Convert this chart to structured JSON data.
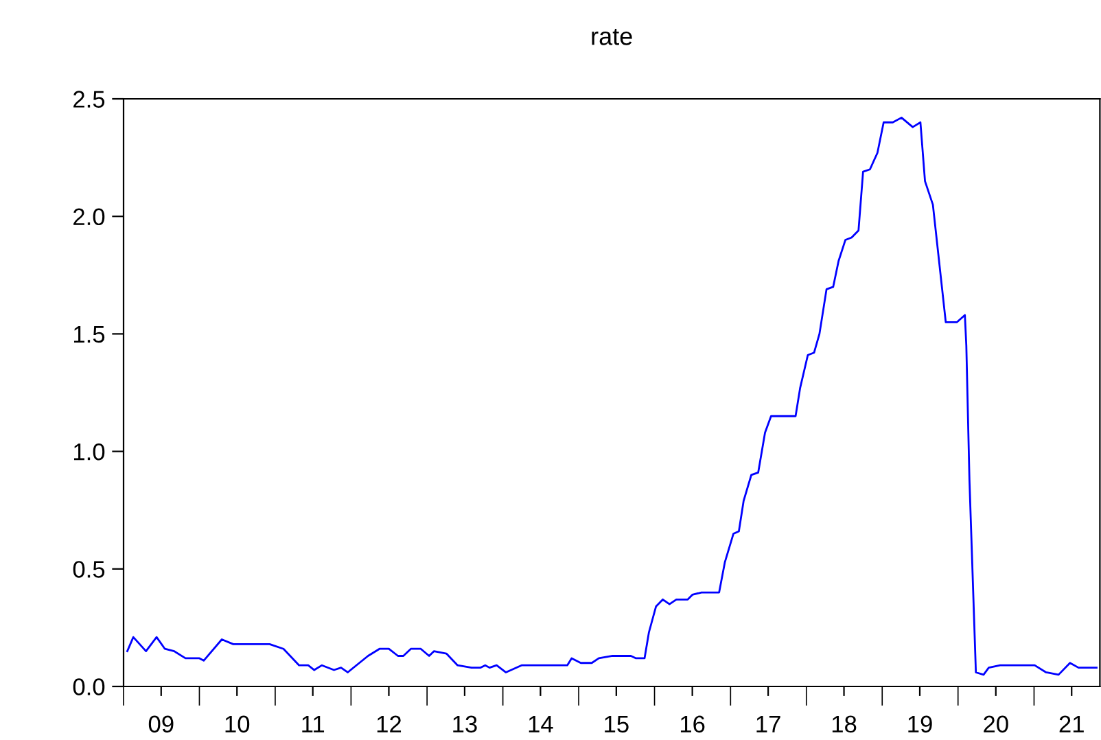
{
  "chart_data": {
    "type": "line",
    "title": "rate",
    "x": [
      "2009-01-19",
      "2009-02-17",
      "2009-04-19",
      "2009-06-09",
      "2009-07-19",
      "2009-09-02",
      "2009-10-26",
      "2010-01-01",
      "2010-01-22",
      "2010-04-19",
      "2010-06-13",
      "2010-07-26",
      "2010-12-05",
      "2011-02-10",
      "2011-04-26",
      "2011-06-09",
      "2011-07-08",
      "2011-08-14",
      "2011-10-11",
      "2011-11-14",
      "2011-12-16",
      "2012-03-23",
      "2012-05-17",
      "2012-07-01",
      "2012-08-14",
      "2012-09-09",
      "2012-10-15",
      "2012-12-02",
      "2013-01-11",
      "2013-02-03",
      "2013-04-04",
      "2013-05-28",
      "2013-08-03",
      "2013-09-16",
      "2013-10-08",
      "2013-10-29",
      "2013-12-02",
      "2014-01-15",
      "2014-04-01",
      "2014-05-25",
      "2014-06-27",
      "2014-11-07",
      "2014-11-28",
      "2015-01-11",
      "2015-03-05",
      "2015-04-08",
      "2015-06-13",
      "2015-09-09",
      "2015-10-04",
      "2015-11-14",
      "2015-12-05",
      "2016-01-08",
      "2016-02-10",
      "2016-03-13",
      "2016-04-15",
      "2016-06-09",
      "2016-07-01",
      "2016-08-14",
      "2016-11-07",
      "2016-12-05",
      "2017-01-15",
      "2017-02-10",
      "2017-03-05",
      "2017-04-11",
      "2017-05-14",
      "2017-06-16",
      "2017-07-15",
      "2017-11-10",
      "2017-12-02",
      "2018-01-08",
      "2018-02-07",
      "2018-03-05",
      "2018-04-08",
      "2018-05-10",
      "2018-06-05",
      "2018-07-08",
      "2018-08-07",
      "2018-09-09",
      "2018-10-01",
      "2018-11-03",
      "2018-12-09",
      "2019-01-08",
      "2019-02-21",
      "2019-04-04",
      "2019-05-28",
      "2019-07-04",
      "2019-07-26",
      "2019-09-02",
      "2019-11-03",
      "2019-12-27",
      "2020-02-03",
      "2020-02-10",
      "2020-02-25",
      "2020-03-13",
      "2020-03-27",
      "2020-05-03",
      "2020-05-28",
      "2020-07-22",
      "2020-09-16",
      "2021-01-04",
      "2021-02-28",
      "2021-04-29",
      "2021-06-23",
      "2021-08-03",
      "2021-10-29"
    ],
    "series": [
      {
        "color": "#0000ff",
        "values": [
          0.15,
          0.21,
          0.15,
          0.21,
          0.16,
          0.15,
          0.12,
          0.12,
          0.11,
          0.2,
          0.18,
          0.18,
          0.18,
          0.16,
          0.09,
          0.09,
          0.07,
          0.09,
          0.07,
          0.08,
          0.06,
          0.13,
          0.16,
          0.16,
          0.13,
          0.13,
          0.16,
          0.16,
          0.13,
          0.15,
          0.14,
          0.09,
          0.08,
          0.08,
          0.09,
          0.08,
          0.09,
          0.06,
          0.09,
          0.09,
          0.09,
          0.09,
          0.12,
          0.1,
          0.1,
          0.12,
          0.13,
          0.13,
          0.12,
          0.12,
          0.23,
          0.34,
          0.37,
          0.35,
          0.37,
          0.37,
          0.39,
          0.4,
          0.4,
          0.53,
          0.65,
          0.66,
          0.79,
          0.9,
          0.91,
          1.08,
          1.15,
          1.15,
          1.27,
          1.41,
          1.42,
          1.5,
          1.69,
          1.7,
          1.81,
          1.9,
          1.91,
          1.94,
          2.19,
          2.2,
          2.27,
          2.4,
          2.4,
          2.42,
          2.38,
          2.4,
          2.15,
          2.05,
          1.55,
          1.55,
          1.58,
          1.45,
          0.88,
          0.43,
          0.06,
          0.05,
          0.08,
          0.09,
          0.09,
          0.09,
          0.06,
          0.05,
          0.1,
          0.08,
          0.08
        ]
      }
    ],
    "xlim": [
      "2009-01-01",
      "2021-11-14"
    ],
    "xticks": [
      {
        "value": "2009-01-01",
        "label": null
      },
      {
        "value": "2010-01-01",
        "label": null
      },
      {
        "value": "2011-01-01",
        "label": null
      },
      {
        "value": "2012-01-01",
        "label": null
      },
      {
        "value": "2013-01-01",
        "label": null
      },
      {
        "value": "2014-01-01",
        "label": null
      },
      {
        "value": "2015-01-01",
        "label": null
      },
      {
        "value": "2016-01-01",
        "label": null
      },
      {
        "value": "2017-01-01",
        "label": null
      },
      {
        "value": "2018-01-01",
        "label": null
      },
      {
        "value": "2019-01-01",
        "label": null
      },
      {
        "value": "2020-01-01",
        "label": null
      },
      {
        "value": "2021-01-01",
        "label": null
      },
      {
        "value": "2009-07-01",
        "label": "09"
      },
      {
        "value": "2010-07-01",
        "label": "10"
      },
      {
        "value": "2011-07-01",
        "label": "11"
      },
      {
        "value": "2012-07-01",
        "label": "12"
      },
      {
        "value": "2013-07-01",
        "label": "13"
      },
      {
        "value": "2014-07-01",
        "label": "14"
      },
      {
        "value": "2015-07-01",
        "label": "15"
      },
      {
        "value": "2016-07-01",
        "label": "16"
      },
      {
        "value": "2017-07-01",
        "label": "17"
      },
      {
        "value": "2018-07-01",
        "label": "18"
      },
      {
        "value": "2019-07-01",
        "label": "19"
      },
      {
        "value": "2020-07-01",
        "label": "20"
      },
      {
        "value": "2021-07-01",
        "label": "21"
      }
    ],
    "ylim": [
      0,
      2.5
    ],
    "yticks": [
      {
        "value": 0,
        "label": "0.0"
      },
      {
        "value": 0.5,
        "label": "0.5"
      },
      {
        "value": 1,
        "label": "1.0"
      },
      {
        "value": 1.5,
        "label": "1.5"
      },
      {
        "value": 2,
        "label": "2.0"
      },
      {
        "value": 2.5,
        "label": "2.5"
      }
    ],
    "grid": false,
    "marker": "none",
    "line_style": "solid"
  }
}
